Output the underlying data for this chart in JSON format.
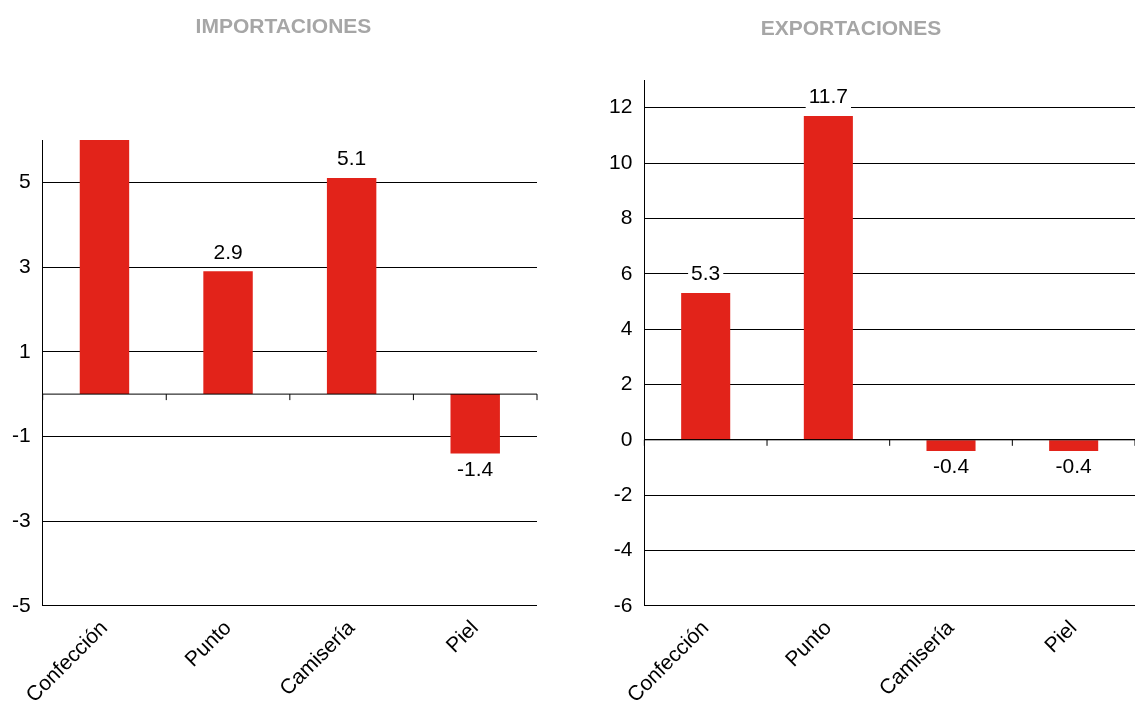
{
  "chart_data": [
    {
      "type": "bar",
      "title": "IMPORTACIONES",
      "categories": [
        "Confección",
        "Punto",
        "Camisería",
        "Piel"
      ],
      "values": [
        6.0,
        2.9,
        5.1,
        -1.4
      ],
      "value_labels": [
        null,
        "2.9",
        "5.1",
        "-1.4"
      ],
      "color": "#e2231a",
      "ylim": [
        -5,
        6
      ],
      "yticks": [
        -5,
        -3,
        -1,
        1,
        3,
        5
      ],
      "grid": "y"
    },
    {
      "type": "bar",
      "title": "EXPORTACIONES",
      "categories": [
        "Confección",
        "Punto",
        "Camisería",
        "Piel"
      ],
      "values": [
        5.3,
        11.7,
        -0.4,
        -0.4
      ],
      "data_labels": true,
      "color": "#e2231a",
      "ylim": [
        -6,
        13
      ],
      "yticks": [
        -6,
        -4,
        -2,
        0,
        2,
        4,
        6,
        8,
        10,
        12
      ],
      "grid": "y"
    }
  ]
}
